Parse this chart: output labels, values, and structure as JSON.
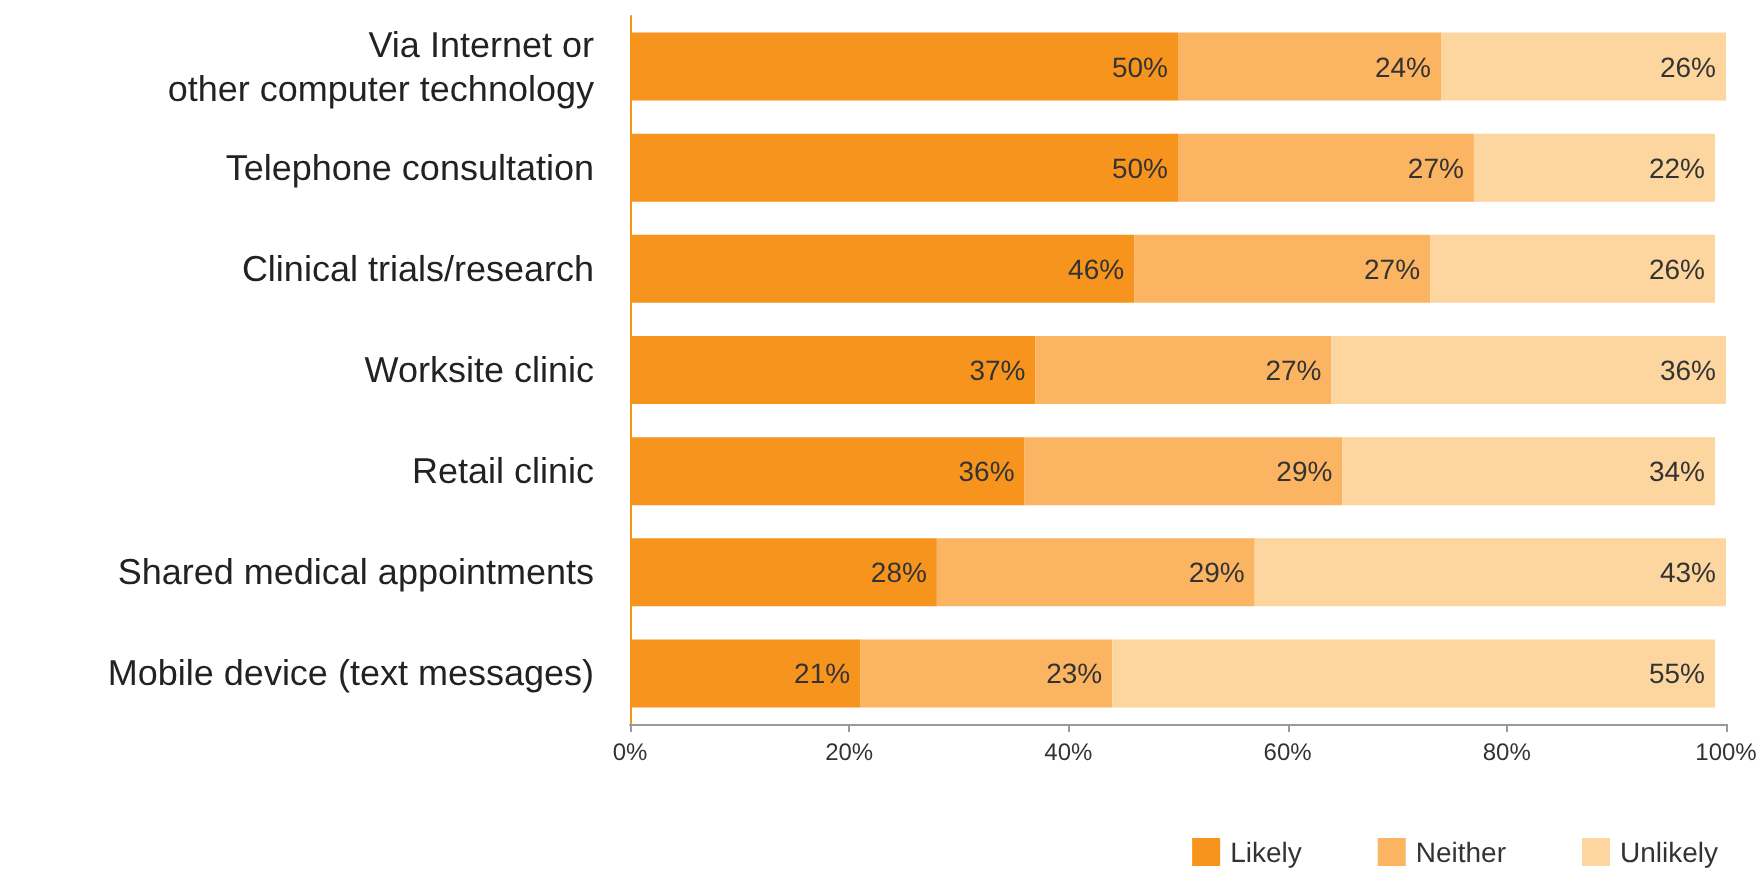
{
  "chart_data": {
    "type": "bar",
    "orientation": "horizontal",
    "stacked": true,
    "categories": [
      "Via Internet or\nother computer technology",
      "Telephone consultation",
      "Clinical trials/research",
      "Worksite clinic",
      "Retail clinic",
      "Shared medical appointments",
      "Mobile device (text messages)"
    ],
    "series": [
      {
        "name": "Likely",
        "color": "#f7941d",
        "values": [
          50,
          50,
          46,
          37,
          36,
          28,
          21
        ],
        "value_labels": [
          "50%",
          "50%",
          "46%",
          "37%",
          "36%",
          "28%",
          "21%"
        ]
      },
      {
        "name": "Neither",
        "color": "#fbb462",
        "values": [
          24,
          27,
          27,
          27,
          29,
          29,
          23
        ],
        "value_labels": [
          "24%",
          "27%",
          "27%",
          "27%",
          "29%",
          "29%",
          "23%"
        ]
      },
      {
        "name": "Unlikely",
        "color": "#fdd59f",
        "values": [
          26,
          22,
          26,
          36,
          34,
          43,
          55
        ],
        "value_labels": [
          "26%",
          "22%",
          "26%",
          "36%",
          "34%",
          "43%",
          "55%"
        ]
      }
    ],
    "xlim": [
      0,
      100
    ],
    "xticks": [
      {
        "value": 0,
        "label": "0%"
      },
      {
        "value": 20,
        "label": "20%"
      },
      {
        "value": 40,
        "label": "40%"
      },
      {
        "value": 60,
        "label": "60%"
      },
      {
        "value": 80,
        "label": "80%"
      },
      {
        "value": 100,
        "label": "100%"
      }
    ],
    "legend": "bottom right"
  }
}
